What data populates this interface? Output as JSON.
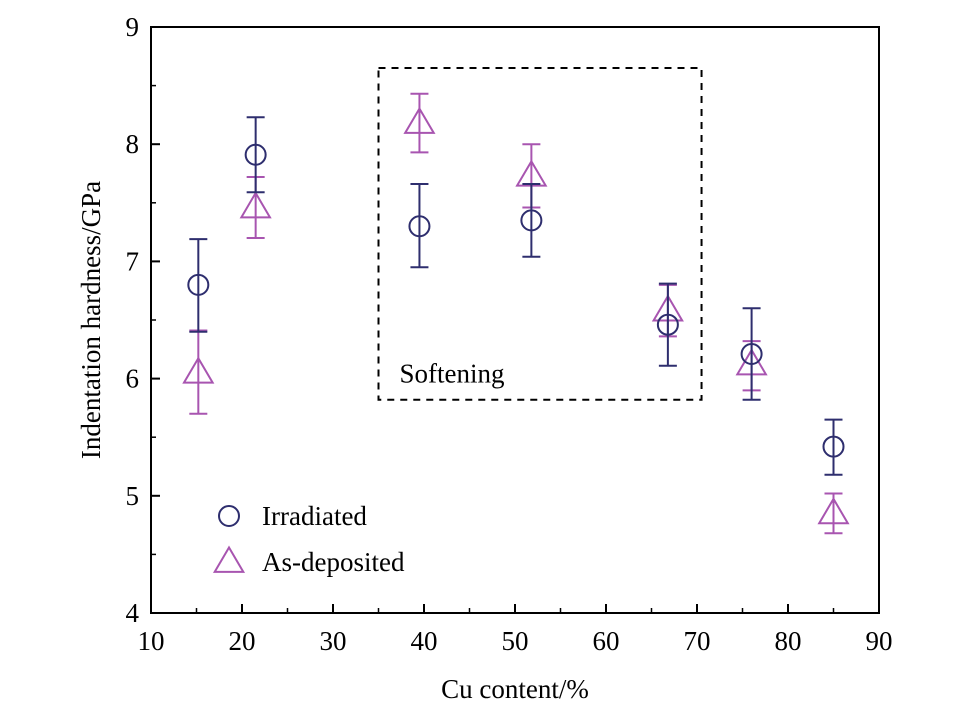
{
  "chart_data": {
    "type": "scatter",
    "title": "",
    "xlabel": "Cu content/%",
    "ylabel": "Indentation hardness/GPa",
    "xlim": [
      10,
      90
    ],
    "ylim": [
      4,
      9
    ],
    "xticks": [
      "10",
      "20",
      "30",
      "40",
      "50",
      "60",
      "70",
      "80",
      "90"
    ],
    "yticks": [
      "4",
      "5",
      "6",
      "7",
      "8",
      "9"
    ],
    "grid": false,
    "legend_position": "bottom-left",
    "series": [
      {
        "name": "Irradiated",
        "marker": "circle",
        "color": "#2e2e6e",
        "points": [
          {
            "x": 15.2,
            "y": 6.8,
            "err_low": 0.4,
            "err_high": 0.39
          },
          {
            "x": 21.5,
            "y": 7.91,
            "err_low": 0.32,
            "err_high": 0.32
          },
          {
            "x": 39.5,
            "y": 7.3,
            "err_low": 0.35,
            "err_high": 0.36
          },
          {
            "x": 51.8,
            "y": 7.35,
            "err_low": 0.31,
            "err_high": 0.31
          },
          {
            "x": 66.8,
            "y": 6.46,
            "err_low": 0.35,
            "err_high": 0.35
          },
          {
            "x": 76.0,
            "y": 6.21,
            "err_low": 0.39,
            "err_high": 0.39
          },
          {
            "x": 85.0,
            "y": 5.42,
            "err_low": 0.24,
            "err_high": 0.23
          }
        ]
      },
      {
        "name": "As-deposited",
        "marker": "triangle",
        "color": "#a855b0",
        "points": [
          {
            "x": 15.2,
            "y": 6.05,
            "err_low": 0.35,
            "err_high": 0.36
          },
          {
            "x": 21.5,
            "y": 7.46,
            "err_low": 0.26,
            "err_high": 0.26
          },
          {
            "x": 39.5,
            "y": 8.18,
            "err_low": 0.25,
            "err_high": 0.25
          },
          {
            "x": 51.8,
            "y": 7.73,
            "err_low": 0.27,
            "err_high": 0.27
          },
          {
            "x": 66.8,
            "y": 6.58,
            "err_low": 0.22,
            "err_high": 0.22
          },
          {
            "x": 76.0,
            "y": 6.12,
            "err_low": 0.22,
            "err_high": 0.2
          },
          {
            "x": 85.0,
            "y": 4.85,
            "err_low": 0.17,
            "err_high": 0.17
          }
        ]
      }
    ],
    "annotations": [
      {
        "text": "Softening",
        "region": {
          "x_min": 35.0,
          "x_max": 70.5,
          "y_min": 5.82,
          "y_max": 8.65
        }
      }
    ]
  }
}
